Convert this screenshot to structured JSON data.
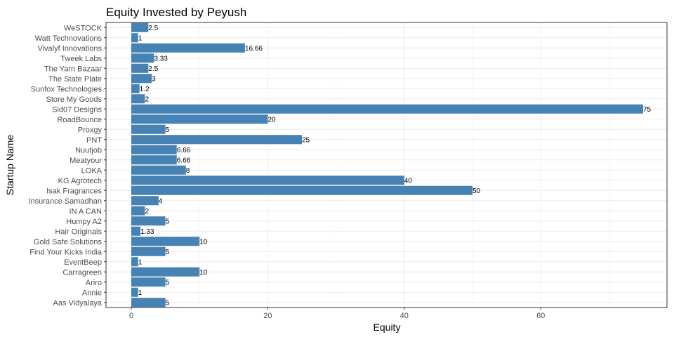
{
  "chart_data": {
    "type": "bar",
    "orientation": "horizontal",
    "title": "Equity Invested by Peyush",
    "xlabel": "Equity",
    "ylabel": "Startup Name",
    "xlim": [
      0,
      78
    ],
    "xticks": [
      0,
      20,
      40,
      60
    ],
    "grid": true,
    "legend": "none",
    "bar_color": "#4682b4",
    "categories": [
      "WeSTOCK",
      "Watt Technovations",
      "Vivalyf Innovations",
      "Tweek Labs",
      "The Yarn Bazaar",
      "The State Plate",
      "Sunfox Technologies",
      "Store My Goods",
      "Sid07 Designs",
      "RoadBounce",
      "Proxgy",
      "PNT",
      "Nuutjob",
      "Meatyour",
      "LOKA",
      "KG Agrotech",
      "Isak Fragrances",
      "Insurance Samadhan",
      "IN A CAN",
      "Humpy A2",
      "Hair Originals",
      "Gold Safe Solutions",
      "Find Your Kicks India",
      "EventBeep",
      "Carragreen",
      "Ariro",
      "Annie",
      "Aas Vidyalaya"
    ],
    "values": [
      2.5,
      1,
      16.66,
      3.33,
      2.5,
      3,
      1.2,
      2,
      75,
      20,
      5,
      25,
      6.66,
      6.66,
      8,
      40,
      50,
      4,
      2,
      5,
      1.33,
      10,
      5,
      1,
      10,
      5,
      1,
      5
    ],
    "value_labels": [
      "2.5",
      "1",
      "16.66",
      "3.33",
      "2.5",
      "3",
      "1.2",
      "2",
      "75",
      "20",
      "5",
      "25",
      "6.66",
      "6.66",
      "8",
      "40",
      "50",
      "4",
      "2",
      "5",
      "1.33",
      "10",
      "5",
      "1",
      "10",
      "5",
      "1",
      "5"
    ]
  }
}
